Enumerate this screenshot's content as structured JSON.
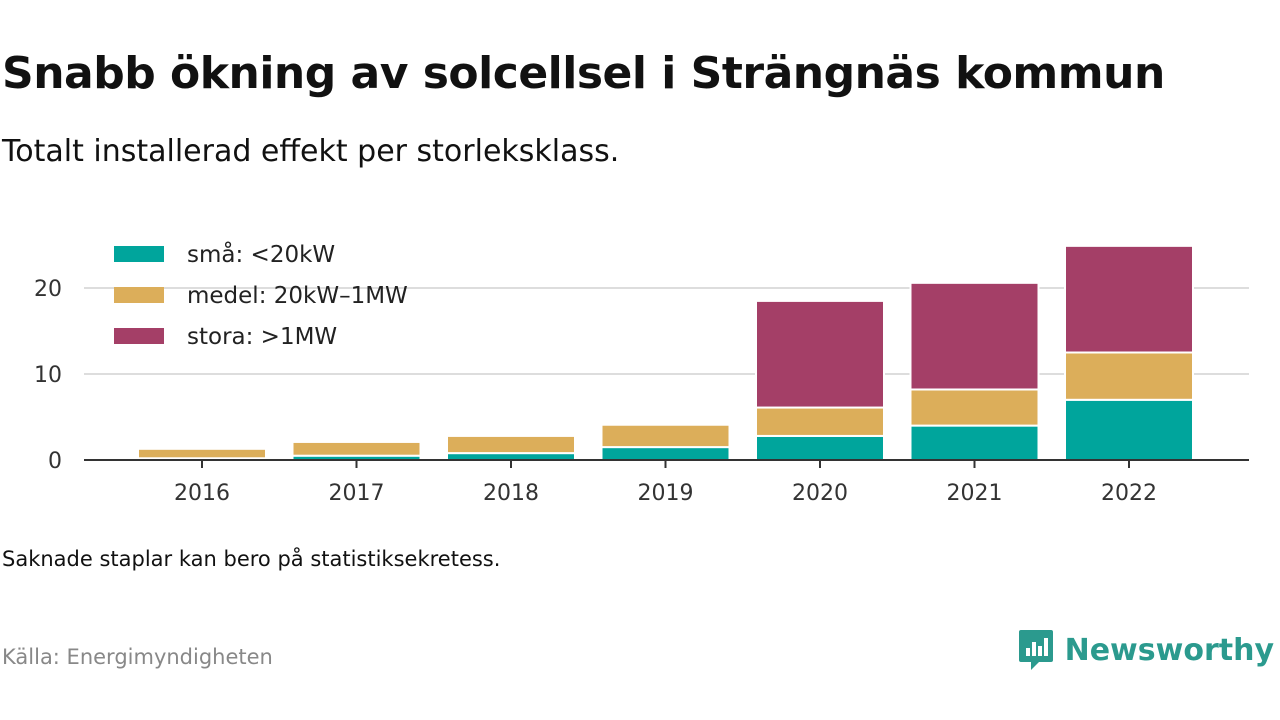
{
  "title": "Snabb ökning av solcellsel i Strängnäs kommun",
  "subtitle": "Totalt installerad effekt per storleksklass.",
  "note": "Saknade staplar kan bero på statistiksekretess.",
  "source": "Källa: Energimyndigheten",
  "brand": {
    "name": "Newsworthy",
    "color": "#2b9a8e",
    "icon": "chart-speech-bubble-icon"
  },
  "chart_data": {
    "type": "bar",
    "stacked": true,
    "categories": [
      "2016",
      "2017",
      "2018",
      "2019",
      "2020",
      "2021",
      "2022"
    ],
    "series": [
      {
        "name": "små: <20kW",
        "color": "#00a59c",
        "values": [
          0.2,
          0.5,
          0.8,
          1.5,
          2.8,
          4.0,
          7.0
        ]
      },
      {
        "name": "medel: 20kW–1MW",
        "color": "#dcae5a",
        "values": [
          1.1,
          1.6,
          2.0,
          2.6,
          3.3,
          4.2,
          5.5
        ]
      },
      {
        "name": "stora: >1MW",
        "color": "#a43f67",
        "values": [
          0,
          0,
          0,
          0,
          12.4,
          12.4,
          12.4
        ]
      }
    ],
    "yticks": [
      0,
      10,
      20
    ],
    "ylim": [
      0,
      25
    ],
    "grid": true,
    "legend": "top-left",
    "xlabel": "",
    "ylabel": ""
  }
}
